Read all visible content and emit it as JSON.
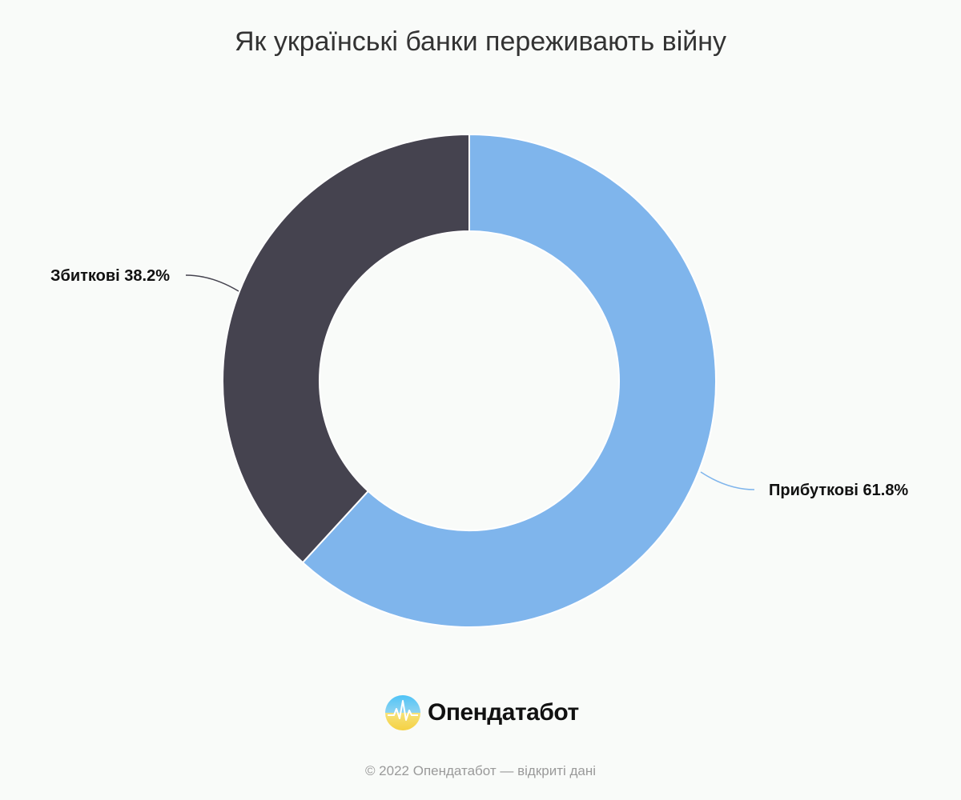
{
  "chart_data": {
    "type": "pie",
    "title": "Як українські банки переживають війну",
    "slices": [
      {
        "label": "Прибуткові",
        "value": 61.8,
        "value_label": "61.8%",
        "color": "#7fb5ec"
      },
      {
        "label": "Збиткові",
        "value": 38.2,
        "value_label": "38.2%",
        "color": "#45434f"
      }
    ],
    "style": "donut"
  },
  "brand": {
    "name": "Опендатабот",
    "logo_colors": [
      "#4fc3f7",
      "#f5d142"
    ]
  },
  "footer": {
    "text": "© 2022 Опендатабот — відкриті дані"
  }
}
